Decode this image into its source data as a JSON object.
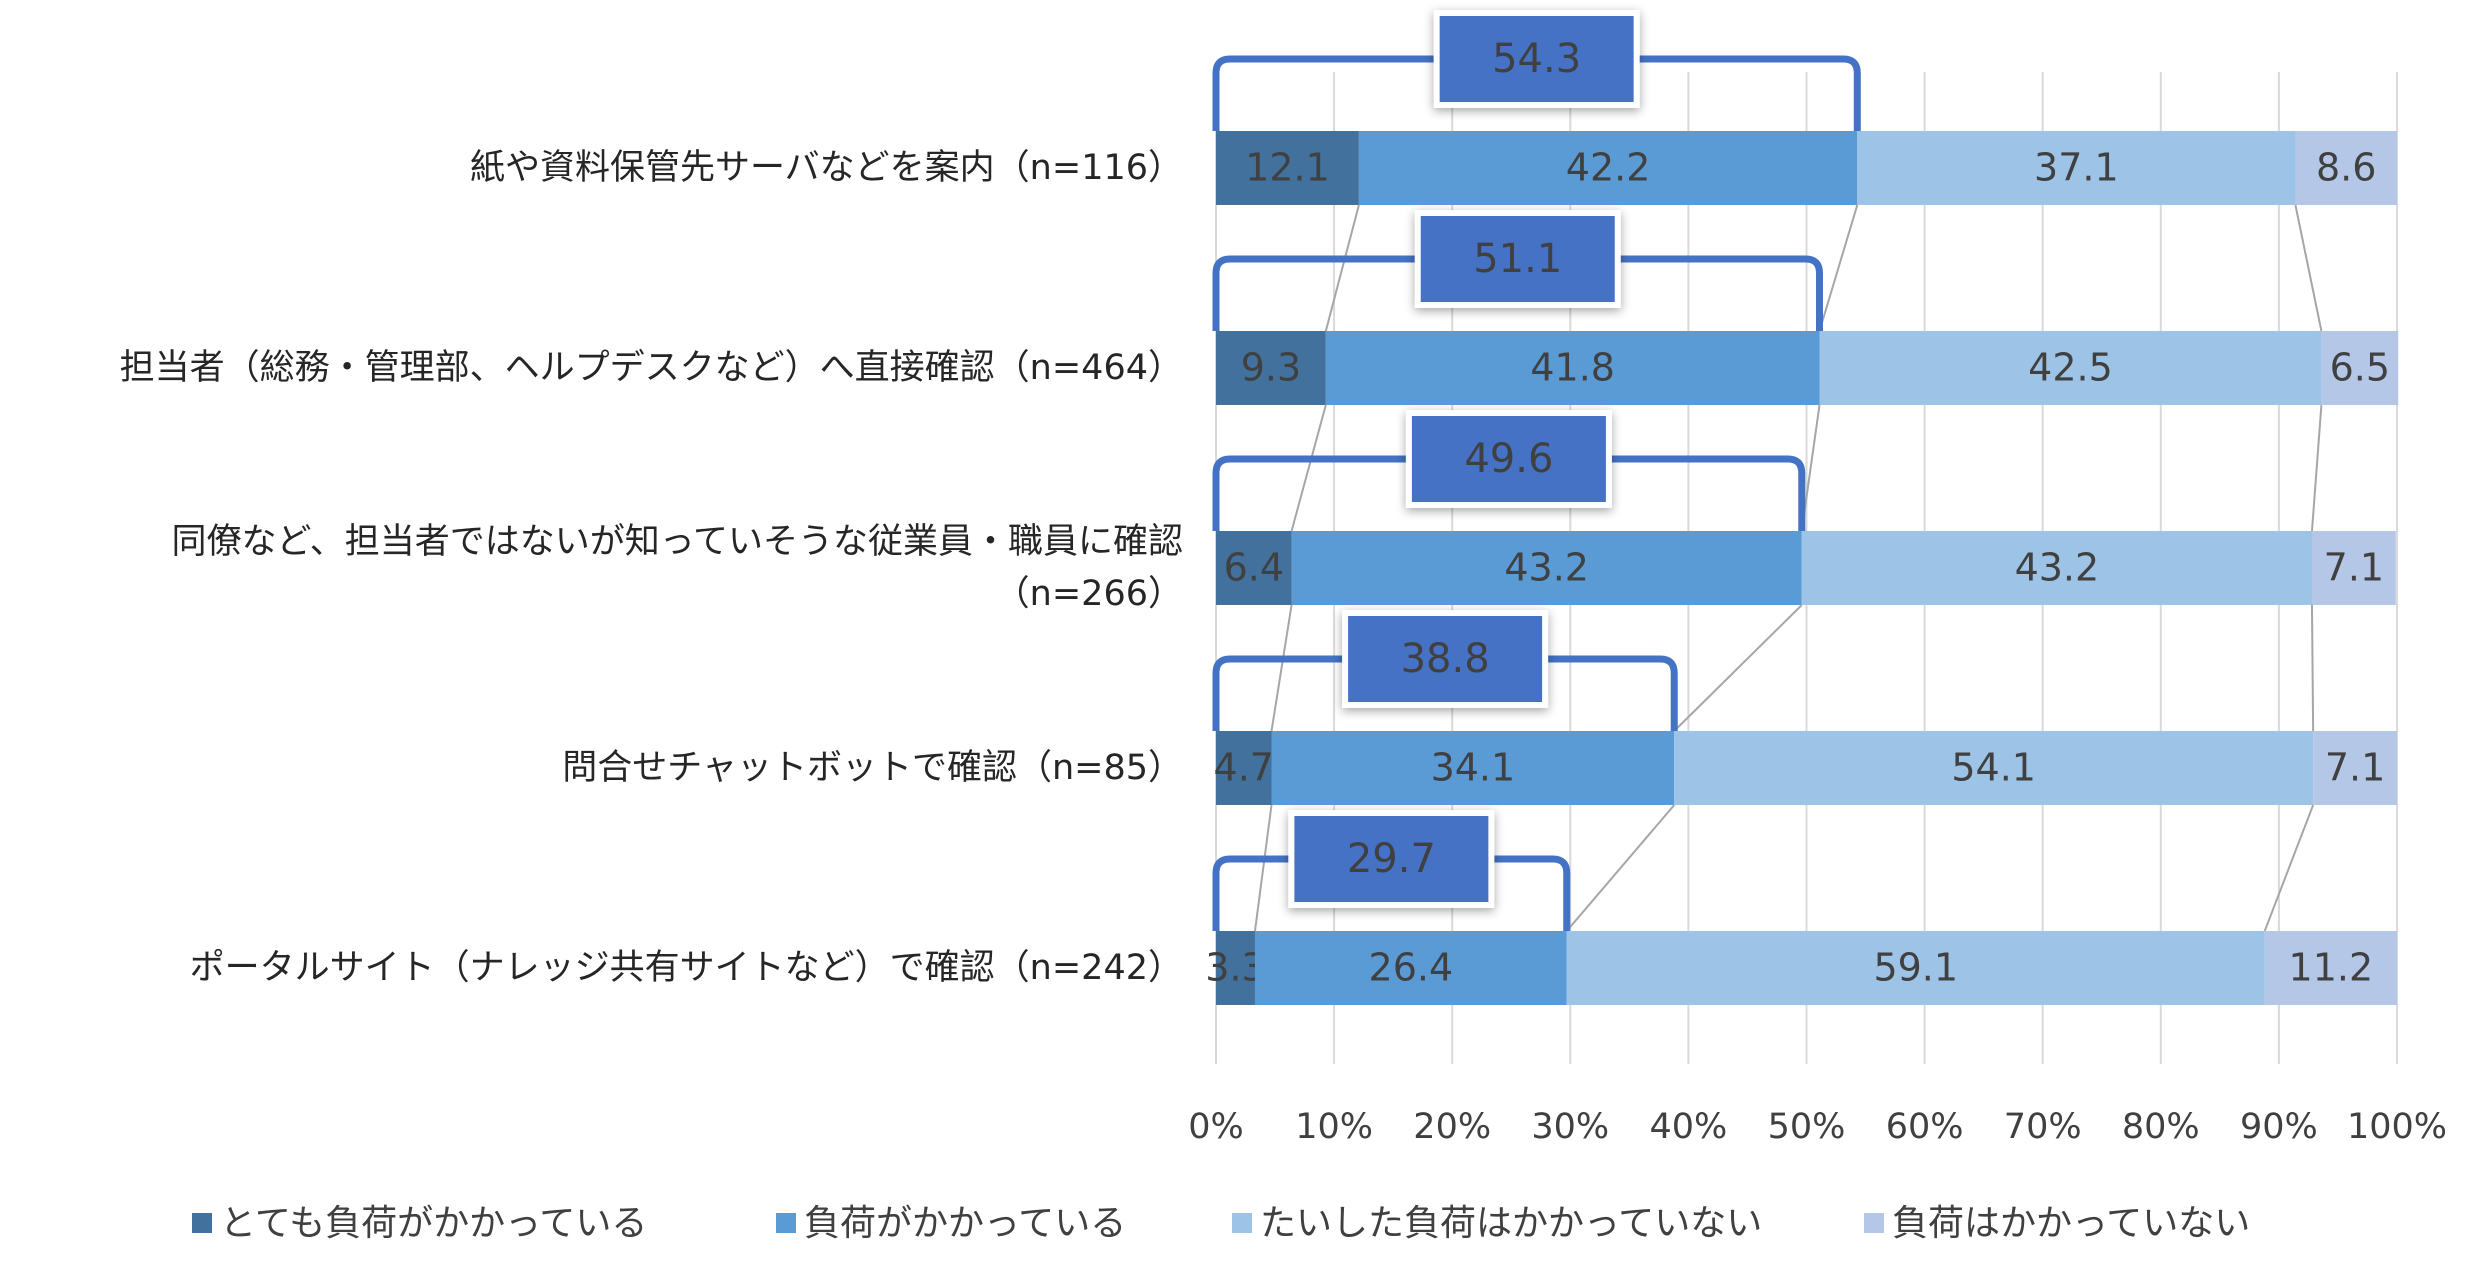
{
  "chart_data": {
    "type": "stacked_barh",
    "categories": [
      "紙や資料保管先サーバなどを案内（n=116）",
      "担当者（総務・管理部、ヘルプデスクなど）へ直接確認（n=464）",
      "同僚など、担当者ではないが知っていそうな従業員・職員に確認（n=266）",
      "問合せチャットボットで確認（n=85）",
      "ポータルサイト（ナレッジ共有サイトなど）で確認（n=242）"
    ],
    "series": [
      {
        "name": "とても負荷がかかっている",
        "color": "#41719c",
        "values": [
          12.1,
          9.3,
          6.4,
          4.7,
          3.3
        ]
      },
      {
        "name": "負荷がかかっている",
        "color": "#5b9bd5",
        "values": [
          42.2,
          41.8,
          43.2,
          34.1,
          26.4
        ]
      },
      {
        "name": "たいした負荷はかかっていない",
        "color": "#9dc3e6",
        "values": [
          37.1,
          42.5,
          43.2,
          54.1,
          59.1
        ]
      },
      {
        "name": "負荷はかかっていない",
        "color": "#b4c7e7",
        "values": [
          8.6,
          6.5,
          7.1,
          7.1,
          11.2
        ]
      }
    ],
    "bracket_values": [
      54.3,
      51.1,
      49.6,
      38.8,
      29.7
    ],
    "bracket_color": "#4472c4",
    "xlim": [
      0,
      100
    ],
    "xticks": [
      {
        "value": 0,
        "label": "0%"
      },
      {
        "value": 10,
        "label": "10%"
      },
      {
        "value": 20,
        "label": "20%"
      },
      {
        "value": 30,
        "label": "30%"
      },
      {
        "value": 40,
        "label": "40%"
      },
      {
        "value": 50,
        "label": "50%"
      },
      {
        "value": 60,
        "label": "60%"
      },
      {
        "value": 70,
        "label": "70%"
      },
      {
        "value": 80,
        "label": "80%"
      },
      {
        "value": 90,
        "label": "90%"
      },
      {
        "value": 100,
        "label": "100%"
      }
    ],
    "grid": true,
    "legend": "bottom"
  }
}
